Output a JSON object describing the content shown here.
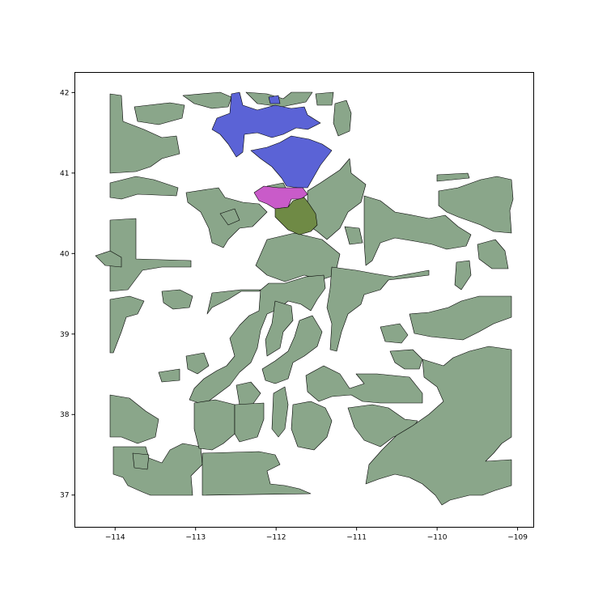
{
  "map": {
    "colors": {
      "background_regions": "#8aa68a",
      "northern_cluster": "#5b63d6",
      "central_cluster": "#c95bc9",
      "southern_cluster": "#6f8a45",
      "outline": "#000000",
      "frame": "#000000"
    },
    "x_axis": {
      "range": [
        -114.5,
        -108.8
      ],
      "ticks": [
        -114,
        -113,
        -112,
        -111,
        -110,
        -109
      ],
      "tick_labels": [
        "−114",
        "−113",
        "−112",
        "−111",
        "−110",
        "−109"
      ]
    },
    "y_axis": {
      "range": [
        36.6,
        42.25
      ],
      "ticks": [
        37,
        38,
        39,
        40,
        41,
        42
      ],
      "tick_labels": [
        "37",
        "38",
        "39",
        "40",
        "41",
        "42"
      ]
    }
  }
}
